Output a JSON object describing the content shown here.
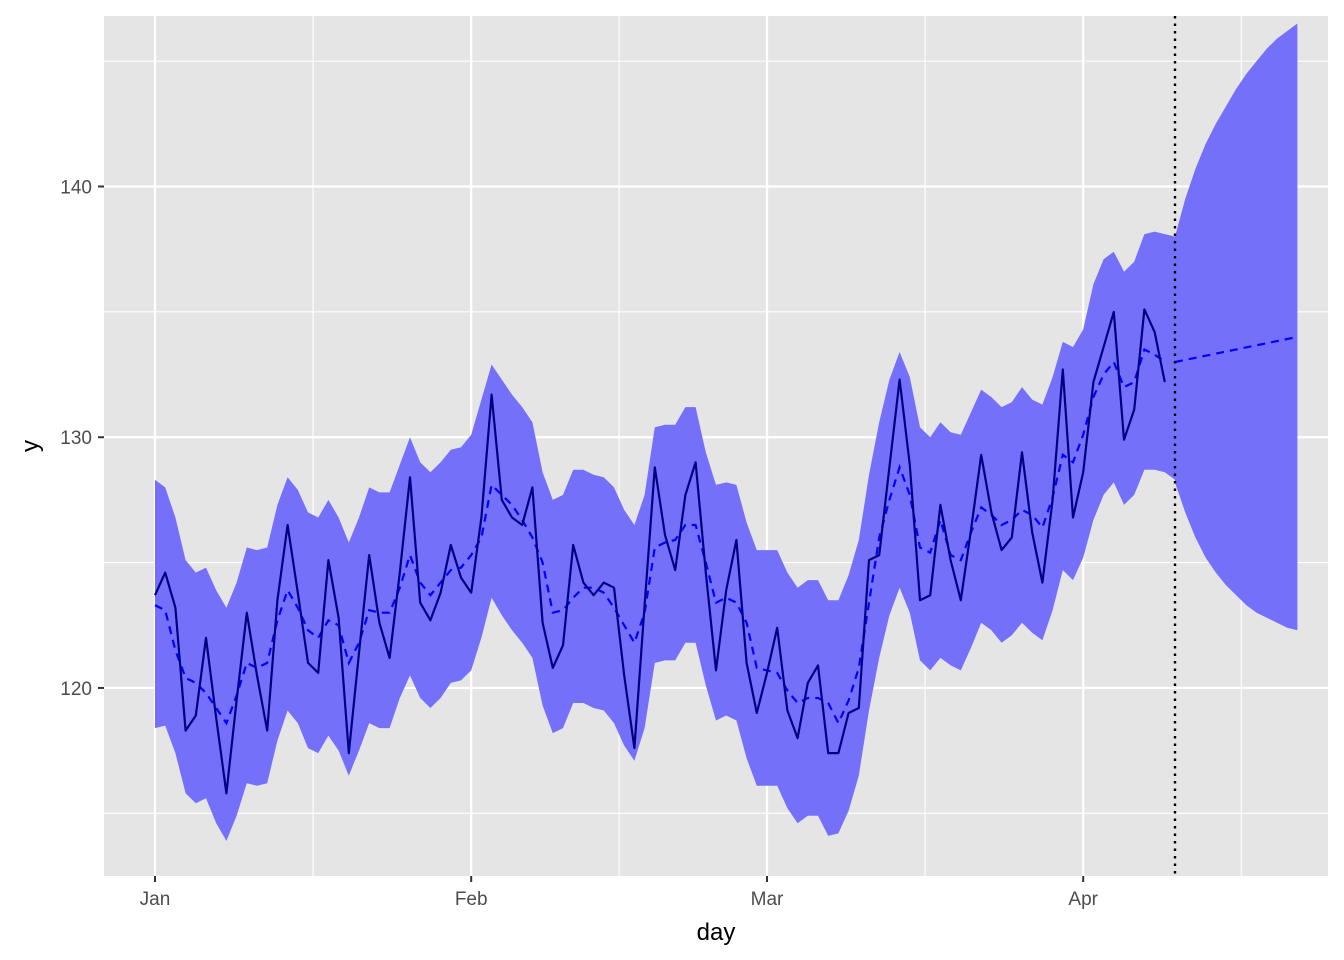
{
  "chart_data": {
    "type": "line",
    "xlabel": "day",
    "ylabel": "y",
    "x_start": "2020-01-01",
    "x_ticks": [
      {
        "label": "Jan",
        "date": "2020-01-01"
      },
      {
        "label": "Feb",
        "date": "2020-02-01"
      },
      {
        "label": "Mar",
        "date": "2020-03-01"
      },
      {
        "label": "Apr",
        "date": "2020-04-01"
      }
    ],
    "xlim": [
      "2019-12-27",
      "2020-04-25"
    ],
    "y_ticks": [
      120,
      130,
      140
    ],
    "ylim": [
      112.5,
      146.8
    ],
    "grid": true,
    "forecast_start": "2020-04-10",
    "colors": {
      "panel": "#E5E5E5",
      "grid": "#FFFFFF",
      "band": "#7570FA",
      "observed_line": "#000080",
      "fitted_line": "#0000FF",
      "forecast_marker": "#000000"
    },
    "series": [
      {
        "role": "observed",
        "x_from": "2020-01-01",
        "values": [
          123.7,
          124.6,
          123.2,
          118.3,
          118.9,
          122.0,
          118.8,
          115.8,
          119.5,
          123.0,
          120.5,
          118.3,
          123.5,
          126.5,
          123.8,
          121.0,
          120.6,
          125.1,
          122.8,
          117.4,
          121.4,
          125.3,
          122.6,
          121.2,
          124.6,
          128.4,
          123.4,
          122.7,
          123.8,
          125.7,
          124.4,
          123.8,
          126.8,
          131.7,
          127.5,
          126.8,
          126.5,
          128.0,
          122.6,
          120.8,
          121.7,
          125.7,
          124.2,
          123.7,
          124.2,
          124.0,
          120.5,
          117.6,
          123.3,
          128.8,
          126.1,
          124.7,
          127.7,
          129.0,
          124.6,
          120.7,
          123.9,
          125.9,
          121.0,
          119.0,
          120.6,
          122.4,
          119.1,
          118.0,
          120.2,
          120.9,
          117.4,
          117.4,
          119.0,
          119.2,
          125.1,
          125.3,
          128.8,
          132.3,
          128.9,
          123.5,
          123.7,
          127.3,
          125.1,
          123.5,
          126.3,
          129.3,
          127.0,
          125.5,
          126.0,
          129.4,
          126.2,
          124.2,
          127.5,
          132.7,
          126.8,
          128.6,
          132.2,
          133.6,
          135.0,
          129.9,
          131.1,
          135.1,
          134.2,
          132.2
        ]
      },
      {
        "role": "fitted",
        "x_from": "2020-01-01",
        "values": [
          123.3,
          123.1,
          121.5,
          120.4,
          120.2,
          119.8,
          119.2,
          118.6,
          119.7,
          121.0,
          120.8,
          121.0,
          122.7,
          123.9,
          123.2,
          122.3,
          122.0,
          122.7,
          122.5,
          121.0,
          121.8,
          123.1,
          123.0,
          123.0,
          124.0,
          125.3,
          124.2,
          123.7,
          124.2,
          124.7,
          124.8,
          125.3,
          126.0,
          128.1,
          127.7,
          127.3,
          126.7,
          126.0,
          125.0,
          123.0,
          123.1,
          123.6,
          124.0,
          124.0,
          123.8,
          123.2,
          122.5,
          121.8,
          123.0,
          125.6,
          125.8,
          125.9,
          126.5,
          126.5,
          125.0,
          123.4,
          123.6,
          123.4,
          122.6,
          120.8,
          120.7,
          120.6,
          119.9,
          119.4,
          119.6,
          119.6,
          119.4,
          118.6,
          119.5,
          120.8,
          123.4,
          126.0,
          127.5,
          128.8,
          127.7,
          125.6,
          125.4,
          126.7,
          125.3,
          125.1,
          126.2,
          127.2,
          126.9,
          126.5,
          126.7,
          127.1,
          126.9,
          126.4,
          127.6,
          129.3,
          129.0,
          130.1,
          131.6,
          132.5,
          133.0,
          132.0,
          132.2,
          133.5,
          133.3,
          133.0
        ]
      },
      {
        "role": "upper",
        "x_from": "2020-01-01",
        "values": [
          128.3,
          128.0,
          126.8,
          125.1,
          124.6,
          124.8,
          123.9,
          123.2,
          124.2,
          125.6,
          125.5,
          125.6,
          127.3,
          128.4,
          127.9,
          127.0,
          126.8,
          127.5,
          126.8,
          125.8,
          126.8,
          128.0,
          127.8,
          127.8,
          128.9,
          130.0,
          129.0,
          128.6,
          129.0,
          129.5,
          129.6,
          130.1,
          131.5,
          132.9,
          132.3,
          131.7,
          131.2,
          130.6,
          128.6,
          127.5,
          127.7,
          128.7,
          128.7,
          128.5,
          128.4,
          128.0,
          127.1,
          126.5,
          127.7,
          130.4,
          130.5,
          130.5,
          131.2,
          131.2,
          129.4,
          128.1,
          128.2,
          128.1,
          126.6,
          125.5,
          125.5,
          125.5,
          124.6,
          124.0,
          124.3,
          124.3,
          123.5,
          123.5,
          124.5,
          125.9,
          128.5,
          130.6,
          132.3,
          133.4,
          132.4,
          130.4,
          130.0,
          130.6,
          130.2,
          130.1,
          131.0,
          131.9,
          131.6,
          131.2,
          131.4,
          132.0,
          131.5,
          131.3,
          132.4,
          133.8,
          133.6,
          134.3,
          136.1,
          137.1,
          137.4,
          136.6,
          137.0,
          138.1,
          138.2,
          138.1,
          138.0
        ]
      },
      {
        "role": "lower",
        "x_from": "2020-01-01",
        "values": [
          118.4,
          118.5,
          117.4,
          115.8,
          115.4,
          115.6,
          114.6,
          113.9,
          114.9,
          116.2,
          116.1,
          116.2,
          117.9,
          119.1,
          118.6,
          117.6,
          117.4,
          118.1,
          117.5,
          116.5,
          117.5,
          118.6,
          118.4,
          118.4,
          119.6,
          120.5,
          119.6,
          119.2,
          119.6,
          120.2,
          120.3,
          120.7,
          122.0,
          123.6,
          122.9,
          122.3,
          121.8,
          121.2,
          119.3,
          118.2,
          118.4,
          119.4,
          119.4,
          119.2,
          119.1,
          118.6,
          117.7,
          117.1,
          118.4,
          121.0,
          121.1,
          121.1,
          121.8,
          121.8,
          120.1,
          118.7,
          118.9,
          118.7,
          117.2,
          116.1,
          116.1,
          116.1,
          115.2,
          114.6,
          114.9,
          114.9,
          114.1,
          114.2,
          115.1,
          116.5,
          119.1,
          121.2,
          122.9,
          124.0,
          123.0,
          121.1,
          120.7,
          121.2,
          120.9,
          120.7,
          121.6,
          122.6,
          122.3,
          121.8,
          122.1,
          122.6,
          122.2,
          121.9,
          123.1,
          124.7,
          124.3,
          125.2,
          126.7,
          127.7,
          128.2,
          127.3,
          127.7,
          128.7,
          128.7,
          128.6,
          128.3
        ]
      },
      {
        "role": "forecast",
        "x": [
          "2020-04-10",
          "2020-04-22"
        ],
        "values": [
          133.0,
          134.0
        ]
      },
      {
        "role": "forecast_upper",
        "x_from": "2020-04-10",
        "values": [
          138.0,
          139.5,
          140.7,
          141.7,
          142.5,
          143.2,
          143.9,
          144.5,
          145.0,
          145.5,
          145.9,
          146.2,
          146.5
        ]
      },
      {
        "role": "forecast_lower",
        "x_from": "2020-04-10",
        "values": [
          128.2,
          127.0,
          126.0,
          125.2,
          124.6,
          124.1,
          123.7,
          123.3,
          123.0,
          122.8,
          122.6,
          122.4,
          122.3
        ]
      }
    ]
  }
}
